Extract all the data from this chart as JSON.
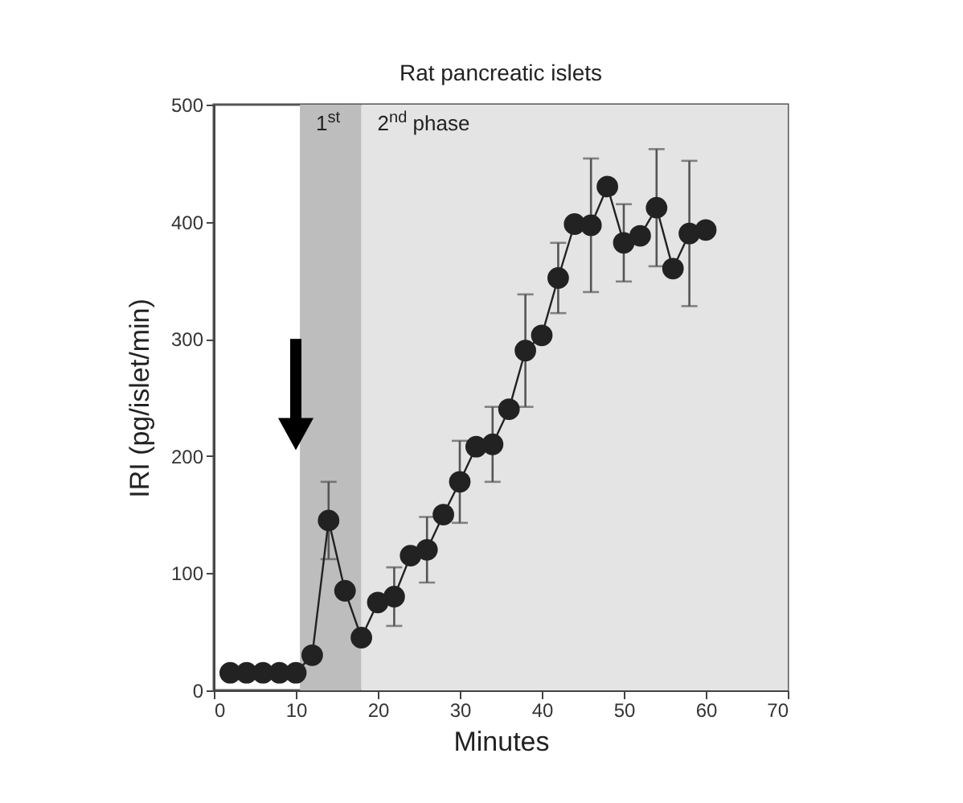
{
  "chart_data": {
    "type": "line",
    "title": "Rat pancreatic islets",
    "xlabel": "Minutes",
    "ylabel": "IRI (pg/islet/min)",
    "x": [
      2,
      4,
      6,
      8,
      10,
      12,
      14,
      16,
      18,
      20,
      22,
      24,
      26,
      28,
      30,
      32,
      34,
      36,
      38,
      40,
      42,
      44,
      46,
      48,
      50,
      52,
      54,
      56,
      58,
      60
    ],
    "values": [
      15,
      15,
      15,
      15,
      15,
      30,
      145,
      85,
      45,
      75,
      80,
      115,
      120,
      150,
      178,
      208,
      210,
      240,
      290,
      303,
      352,
      398,
      397,
      430,
      382,
      388,
      412,
      360,
      390,
      393
    ],
    "errors": [
      null,
      null,
      null,
      null,
      null,
      null,
      33,
      null,
      null,
      null,
      25,
      null,
      28,
      null,
      35,
      null,
      32,
      null,
      48,
      null,
      30,
      null,
      57,
      null,
      33,
      null,
      50,
      null,
      62,
      null
    ],
    "color": "#222222",
    "marker": "circle",
    "line_style": "solid",
    "grid": false,
    "xlim": [
      0,
      70
    ],
    "xticks": [
      0,
      10,
      20,
      30,
      40,
      50,
      60,
      70
    ],
    "ylim": [
      0,
      500
    ],
    "yticks": [
      0,
      100,
      200,
      300,
      400,
      500
    ],
    "bands": [
      {
        "axis": "x",
        "from": 10.5,
        "to": 18,
        "label": "1$^{st}$",
        "color": "#bdbdbd"
      },
      {
        "axis": "x",
        "from": 18,
        "to": 70,
        "label": "2$^{nd}$ phase",
        "color": "#e4e4e4"
      }
    ]
  }
}
